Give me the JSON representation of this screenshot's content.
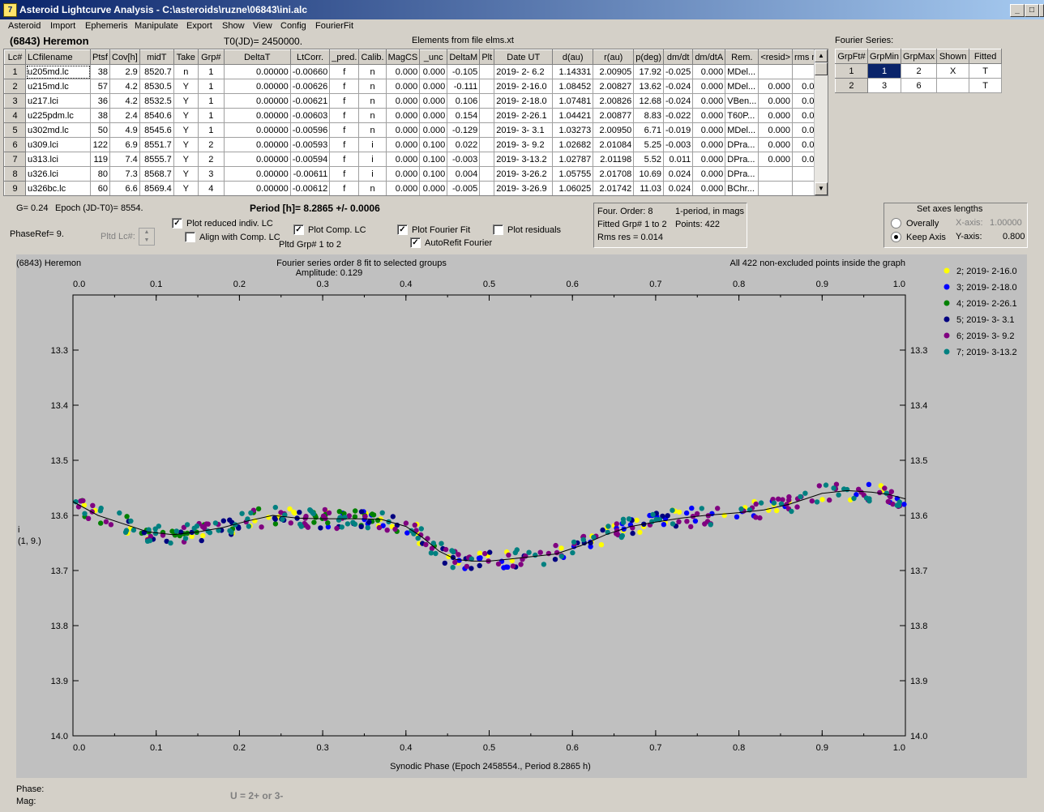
{
  "window": {
    "title": "Asteroid Lightcurve Analysis - C:\\asteroids\\ruzne\\06843\\ini.alc",
    "icon_letter": "7",
    "minimize": "_",
    "maximize": "□",
    "close": "X"
  },
  "menu": [
    "Asteroid",
    "Import",
    "Ephemeris",
    "Manipulate",
    "Export",
    "Show",
    "View",
    "Config",
    "FourierFit"
  ],
  "header": {
    "asteroid": "(6843) Heremon",
    "t0": "T0(JD)= 2450000.",
    "elements": "Elements from file elms.xt",
    "fourier_series_label": "Fourier Series:"
  },
  "table": {
    "columns": [
      "Lc#",
      "LCfilename",
      "Ptsf",
      "Cov[h]",
      "midT",
      "Take",
      "Grp#",
      "DeltaT",
      "LtCorr.",
      "_pred.",
      "Calib.",
      "MagCS",
      "_unc",
      "DeltaM",
      "Plt",
      "Date UT",
      "d(au)",
      "r(au)",
      "p(deg)",
      "dm/dt",
      "dm/dtA",
      "Rem.",
      "<resid>",
      "rms res"
    ],
    "rows": [
      [
        "1",
        "u205md.lc",
        "38",
        "2.9",
        "8520.7",
        "n",
        "1",
        "0.00000",
        "-0.00660",
        "f",
        "n",
        "0.000",
        "0.000",
        "-0.105",
        "",
        "2019- 2- 6.2",
        "1.14331",
        "2.00905",
        "17.92",
        "-0.025",
        "0.000",
        "MDel...",
        "",
        ""
      ],
      [
        "2",
        "u215md.lc",
        "57",
        "4.2",
        "8530.5",
        "Y",
        "1",
        "0.00000",
        "-0.00626",
        "f",
        "n",
        "0.000",
        "0.000",
        "-0.111",
        "",
        "2019- 2-16.0",
        "1.08452",
        "2.00827",
        "13.62",
        "-0.024",
        "0.000",
        "MDel...",
        "0.000",
        "0.019"
      ],
      [
        "3",
        "u217.lci",
        "36",
        "4.2",
        "8532.5",
        "Y",
        "1",
        "0.00000",
        "-0.00621",
        "f",
        "n",
        "0.000",
        "0.000",
        "0.106",
        "",
        "2019- 2-18.0",
        "1.07481",
        "2.00826",
        "12.68",
        "-0.024",
        "0.000",
        "VBen...",
        "0.000",
        "0.013"
      ],
      [
        "4",
        "u225pdm.lc",
        "38",
        "2.4",
        "8540.6",
        "Y",
        "1",
        "0.00000",
        "-0.00603",
        "f",
        "n",
        "0.000",
        "0.000",
        "0.154",
        "",
        "2019- 2-26.1",
        "1.04421",
        "2.00877",
        "8.83",
        "-0.022",
        "0.000",
        "T60P...",
        "0.000",
        "0.007"
      ],
      [
        "5",
        "u302md.lc",
        "50",
        "4.9",
        "8545.6",
        "Y",
        "1",
        "0.00000",
        "-0.00596",
        "f",
        "n",
        "0.000",
        "0.000",
        "-0.129",
        "",
        "2019- 3- 3.1",
        "1.03273",
        "2.00950",
        "6.71",
        "-0.019",
        "0.000",
        "MDel...",
        "0.000",
        "0.010"
      ],
      [
        "6",
        "u309.lci",
        "122",
        "6.9",
        "8551.7",
        "Y",
        "2",
        "0.00000",
        "-0.00593",
        "f",
        "i",
        "0.000",
        "0.100",
        "0.022",
        "",
        "2019- 3- 9.2",
        "1.02682",
        "2.01084",
        "5.25",
        "-0.003",
        "0.000",
        "DPra...",
        "0.000",
        "0.014"
      ],
      [
        "7",
        "u313.lci",
        "119",
        "7.4",
        "8555.7",
        "Y",
        "2",
        "0.00000",
        "-0.00594",
        "f",
        "i",
        "0.000",
        "0.100",
        "-0.003",
        "",
        "2019- 3-13.2",
        "1.02787",
        "2.01198",
        "5.52",
        "0.011",
        "0.000",
        "DPra...",
        "0.000",
        "0.013"
      ],
      [
        "8",
        "u326.lci",
        "80",
        "7.3",
        "8568.7",
        "Y",
        "3",
        "0.00000",
        "-0.00611",
        "f",
        "i",
        "0.000",
        "0.100",
        "0.004",
        "",
        "2019- 3-26.2",
        "1.05755",
        "2.01708",
        "10.69",
        "0.024",
        "0.000",
        "DPra...",
        "",
        ""
      ],
      [
        "9",
        "u326bc.lc",
        "60",
        "6.6",
        "8569.4",
        "Y",
        "4",
        "0.00000",
        "-0.00612",
        "f",
        "n",
        "0.000",
        "0.000",
        "-0.005",
        "",
        "2019- 3-26.9",
        "1.06025",
        "2.01742",
        "11.03",
        "0.024",
        "0.000",
        "BChr...",
        "",
        ""
      ]
    ]
  },
  "fourier_table": {
    "columns": [
      "GrpFt#",
      "GrpMin",
      "GrpMax",
      "Shown",
      "Fitted"
    ],
    "rows": [
      [
        "1",
        "1",
        "2",
        "X",
        "T"
      ],
      [
        "2",
        "3",
        "6",
        "",
        "T"
      ]
    ]
  },
  "controls": {
    "g": "G= 0.24",
    "epoch": "Epoch (JD-T0)= 8554.",
    "period": "Period [h]= 8.2865 +/- 0.0006",
    "phaseref": "PhaseRef= 9.",
    "pltd_lc": "Pltd Lc#:",
    "plot_reduced": "Plot reduced indiv. LC",
    "align_comp": "Align with Comp. LC",
    "plot_comp": "Plot Comp. LC",
    "pltd_grp": "Pltd Grp#  1   to   2",
    "plot_fourier": "Plot Fourier Fit",
    "plot_residuals": "Plot residuals",
    "autorefit": "AutoRefit Fourier"
  },
  "fourier_info": {
    "order": "Four. Order:  8",
    "period_mode": "1-period, in mags",
    "fitted": "Fitted Grp# 1 to 2",
    "points": "Points: 422",
    "rms": "Rms res      = 0.014"
  },
  "axes_panel": {
    "title": "Set axes lengths",
    "overally": "Overally",
    "keep": "Keep Axis",
    "x_label": "X-axis:",
    "x_value": "1.00000",
    "y_label": "Y-axis:",
    "y_value": "0.800"
  },
  "status": {
    "phase": "Phase:",
    "mag": "Mag:",
    "hint": "U = 2+ or 3-"
  },
  "chart_data": {
    "type": "scatter",
    "title_left": "(6843) Heremon",
    "title_center": "Fourier series order 8 fit to selected groups",
    "amplitude": "Amplitude: 0.129",
    "title_right": "All 422 non-excluded points inside the graph",
    "xlabel": "Synodic Phase (Epoch 2458554., Period 8.2865 h)",
    "ylabel_top": "i",
    "ylabel_bottom": "(1, 9.)",
    "xlim": [
      0.0,
      1.0
    ],
    "ylim": [
      13.2,
      14.0
    ],
    "y_inverted": true,
    "x_ticks": [
      "0.0",
      "0.1",
      "0.2",
      "0.3",
      "0.4",
      "0.5",
      "0.6",
      "0.7",
      "0.8",
      "0.9",
      "1.0"
    ],
    "y_ticks": [
      "13.3",
      "13.4",
      "13.5",
      "13.6",
      "13.7",
      "13.8",
      "13.9",
      "14.0"
    ],
    "legend_position": "right",
    "series": [
      {
        "name": "2; 2019- 2-16.0",
        "color": "#ffff00",
        "x_range": [
          0.0,
          1.0
        ]
      },
      {
        "name": "3; 2019- 2-18.0",
        "color": "#0000ff",
        "x_range": [
          0.3,
          1.0
        ]
      },
      {
        "name": "4; 2019- 2-26.1",
        "color": "#008000",
        "x_range": [
          0.0,
          0.45
        ]
      },
      {
        "name": "5; 2019- 3- 3.1",
        "color": "#000080",
        "x_range": [
          0.05,
          0.75
        ]
      },
      {
        "name": "6; 2019- 3- 9.2",
        "color": "#800080",
        "x_range": [
          0.0,
          1.0
        ]
      },
      {
        "name": "7; 2019- 3-13.2",
        "color": "#008080",
        "x_range": [
          0.0,
          1.0
        ]
      }
    ],
    "fit_curve": [
      [
        0.0,
        13.575
      ],
      [
        0.03,
        13.6
      ],
      [
        0.06,
        13.615
      ],
      [
        0.09,
        13.63
      ],
      [
        0.12,
        13.635
      ],
      [
        0.15,
        13.63
      ],
      [
        0.18,
        13.622
      ],
      [
        0.21,
        13.61
      ],
      [
        0.24,
        13.6
      ],
      [
        0.27,
        13.605
      ],
      [
        0.3,
        13.606
      ],
      [
        0.34,
        13.606
      ],
      [
        0.37,
        13.607
      ],
      [
        0.4,
        13.62
      ],
      [
        0.42,
        13.64
      ],
      [
        0.44,
        13.665
      ],
      [
        0.46,
        13.68
      ],
      [
        0.48,
        13.683
      ],
      [
        0.5,
        13.683
      ],
      [
        0.52,
        13.68
      ],
      [
        0.55,
        13.675
      ],
      [
        0.58,
        13.67
      ],
      [
        0.61,
        13.655
      ],
      [
        0.64,
        13.635
      ],
      [
        0.67,
        13.62
      ],
      [
        0.7,
        13.612
      ],
      [
        0.73,
        13.605
      ],
      [
        0.76,
        13.6
      ],
      [
        0.8,
        13.595
      ],
      [
        0.83,
        13.59
      ],
      [
        0.86,
        13.58
      ],
      [
        0.88,
        13.57
      ],
      [
        0.9,
        13.56
      ],
      [
        0.93,
        13.555
      ],
      [
        0.96,
        13.558
      ],
      [
        0.98,
        13.562
      ],
      [
        1.0,
        13.57
      ]
    ]
  }
}
